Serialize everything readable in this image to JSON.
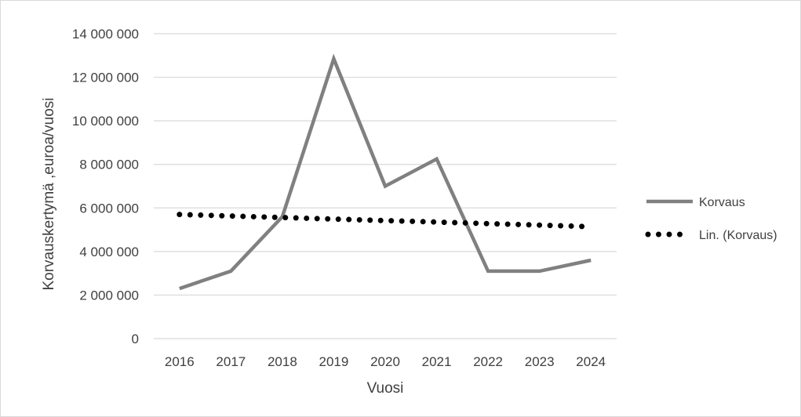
{
  "chart_data": {
    "type": "line",
    "title": "",
    "xlabel": "Vuosi",
    "ylabel": "Korvauskertymä ,euroa/vuosi",
    "categories": [
      "2016",
      "2017",
      "2018",
      "2019",
      "2020",
      "2021",
      "2022",
      "2023",
      "2024"
    ],
    "ylim": [
      0,
      14000000
    ],
    "yticks": [
      0,
      2000000,
      4000000,
      6000000,
      8000000,
      10000000,
      12000000,
      14000000
    ],
    "ytick_labels": [
      "0",
      "2 000 000",
      "4 000 000",
      "6 000 000",
      "8 000 000",
      "10 000 000",
      "12 000 000",
      "14 000 000"
    ],
    "grid": true,
    "legend_position": "right",
    "series": [
      {
        "name": "Korvaus",
        "style": "solid",
        "color": "#808080",
        "values": [
          2300000,
          3100000,
          5600000,
          12850000,
          7000000,
          8250000,
          3100000,
          3100000,
          3600000
        ]
      },
      {
        "name": "Lin. (Korvaus)",
        "style": "dotted",
        "color": "#000000",
        "values": [
          5700000,
          5630000,
          5560000,
          5490000,
          5420000,
          5350000,
          5280000,
          5210000,
          5140000
        ]
      }
    ]
  }
}
